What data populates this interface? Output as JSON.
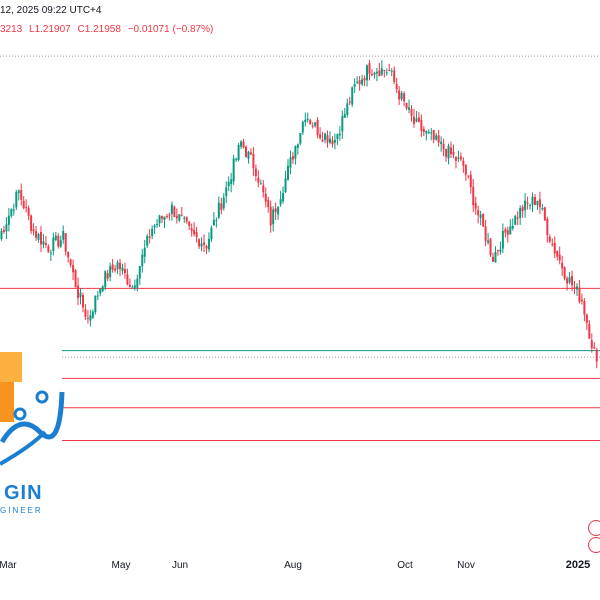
{
  "header": {
    "title_fragment": "12, 2025 09:22 UTC+4",
    "ohlc": {
      "high_fragment": "3213",
      "low": "L1.21907",
      "close": "C1.21958",
      "change": "−0.01071 (−0.87%)"
    }
  },
  "logo": {
    "name": "GIN",
    "tagline": "GINEER"
  },
  "colors": {
    "up": "#089981",
    "down": "#f23645",
    "support_line": "#f23645",
    "current_line": "#089981",
    "logo_orange": "#f7931e",
    "logo_blue": "#1a7fd1"
  },
  "chart_data": {
    "type": "candlestick",
    "x_tick_labels": [
      "Mar",
      "May",
      "Jun",
      "Aug",
      "Oct",
      "Nov",
      "2025"
    ],
    "ylim": [
      1.19,
      1.345
    ],
    "horizontal_levels": [
      {
        "value": 1.3425,
        "style": "dotted",
        "color": "#999999"
      },
      {
        "value": 1.2715,
        "style": "solid",
        "color": "#f23645"
      },
      {
        "value": 1.2525,
        "style": "solid",
        "color": "#089981"
      },
      {
        "value": 1.2505,
        "style": "dotted",
        "color": "#999999"
      },
      {
        "value": 1.244,
        "style": "solid",
        "color": "#f23645"
      },
      {
        "value": 1.235,
        "style": "solid",
        "color": "#f23645"
      },
      {
        "value": 1.225,
        "style": "solid",
        "color": "#f23645"
      }
    ],
    "anchors": [
      [
        0,
        1.287
      ],
      [
        8,
        1.301
      ],
      [
        14,
        1.289
      ],
      [
        20,
        1.284
      ],
      [
        26,
        1.287
      ],
      [
        32,
        1.27
      ],
      [
        36,
        1.262
      ],
      [
        42,
        1.274
      ],
      [
        48,
        1.279
      ],
      [
        54,
        1.272
      ],
      [
        62,
        1.29
      ],
      [
        70,
        1.296
      ],
      [
        78,
        1.288
      ],
      [
        84,
        1.285
      ],
      [
        92,
        1.302
      ],
      [
        98,
        1.316
      ],
      [
        104,
        1.308
      ],
      [
        110,
        1.292
      ],
      [
        116,
        1.305
      ],
      [
        124,
        1.325
      ],
      [
        130,
        1.319
      ],
      [
        136,
        1.317
      ],
      [
        144,
        1.333
      ],
      [
        150,
        1.339
      ],
      [
        158,
        1.338
      ],
      [
        162,
        1.331
      ],
      [
        168,
        1.322
      ],
      [
        174,
        1.318
      ],
      [
        182,
        1.313
      ],
      [
        188,
        1.309
      ],
      [
        194,
        1.294
      ],
      [
        200,
        1.281
      ],
      [
        206,
        1.29
      ],
      [
        212,
        1.296
      ],
      [
        218,
        1.299
      ],
      [
        224,
        1.285
      ],
      [
        230,
        1.275
      ],
      [
        236,
        1.268
      ],
      [
        240,
        1.255
      ],
      [
        242,
        1.2492
      ]
    ]
  }
}
